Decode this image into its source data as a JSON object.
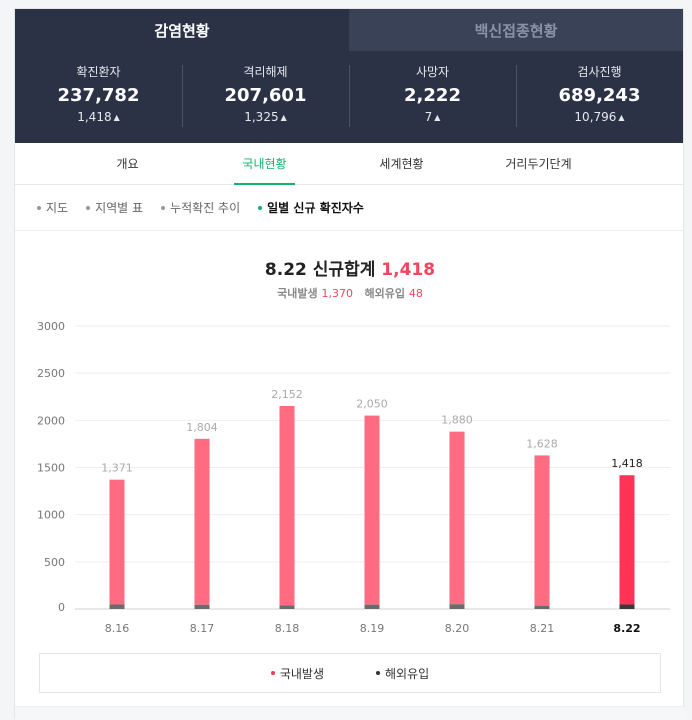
{
  "top_tabs": [
    {
      "label": "감염현황",
      "active": true
    },
    {
      "label": "백신접종현황",
      "active": false
    }
  ],
  "stats": [
    {
      "label": "확진환자",
      "value": "237,782",
      "delta": "1,418"
    },
    {
      "label": "격리해제",
      "value": "207,601",
      "delta": "1,325"
    },
    {
      "label": "사망자",
      "value": "2,222",
      "delta": "7"
    },
    {
      "label": "검사진행",
      "value": "689,243",
      "delta": "10,796"
    }
  ],
  "sub_tabs": [
    {
      "label": "개요",
      "active": false
    },
    {
      "label": "국내현황",
      "active": true
    },
    {
      "label": "세계현황",
      "active": false
    },
    {
      "label": "거리두기단계",
      "active": false
    }
  ],
  "filters": [
    {
      "label": "지도",
      "active": false
    },
    {
      "label": "지역별 표",
      "active": false
    },
    {
      "label": "누적확진 추이",
      "active": false
    },
    {
      "label": "일별 신규 확진자수",
      "active": true
    }
  ],
  "summary": {
    "date": "8.22",
    "title_text": "신규합계",
    "total": "1,418",
    "domestic_label": "국내발생",
    "domestic_value": "1,370",
    "overseas_label": "해외유입",
    "overseas_value": "48"
  },
  "colors": {
    "domestic": "#ff6b80",
    "domestic_highlight": "#ff3355",
    "overseas": "#6b6b6b",
    "overseas_highlight": "#3a3a3a",
    "accent_green": "#14b36a"
  },
  "chart_data": {
    "type": "bar",
    "stacked": true,
    "categories": [
      "8.16",
      "8.17",
      "8.18",
      "8.19",
      "8.20",
      "8.21",
      "8.22"
    ],
    "totals": [
      1371,
      1804,
      2152,
      2050,
      1880,
      1628,
      1418
    ],
    "total_labels": [
      "1,371",
      "1,804",
      "2,152",
      "2,050",
      "1,880",
      "1,628",
      "1,418"
    ],
    "series": [
      {
        "name": "국내발생",
        "values": [
          1323,
          1759,
          2113,
          2004,
          1829,
          1593,
          1370
        ]
      },
      {
        "name": "해외유입",
        "values": [
          48,
          45,
          39,
          46,
          51,
          35,
          48
        ]
      }
    ],
    "ylim": [
      0,
      3000
    ],
    "yticks": [
      "0",
      "500",
      "1000",
      "1500",
      "2000",
      "2500",
      "3000"
    ],
    "highlight_index": 6,
    "grid": true,
    "legend_position": "bottom"
  },
  "legend": [
    {
      "label": "국내발생"
    },
    {
      "label": "해외유입"
    }
  ]
}
